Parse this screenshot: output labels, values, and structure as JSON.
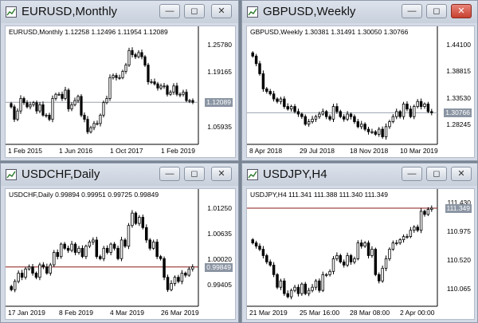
{
  "windows": [
    {
      "id": "eurusd",
      "title": "EURUSD,Monthly",
      "info": "EURUSD,Monthly  1.12258  1.12496  1.11954  1.12089",
      "yticks": [
        {
          "label": "1.25780",
          "value": 1.2578
        },
        {
          "label": "1.19165",
          "value": 1.19165
        },
        {
          "label": "1.05935",
          "value": 1.05935
        }
      ],
      "xticks": [
        "1 Feb 2015",
        "1 Jun 2016",
        "1 Oct 2017",
        "1 Feb 2019"
      ],
      "current_price": "1.12089",
      "current_value": 1.12089,
      "line_color": "#9aa3ad",
      "box_color": "#8b95a3",
      "close_active": false,
      "chart_data": {
        "type": "candlestick",
        "ylim": [
          1.02,
          1.28
        ],
        "closes": [
          1.11,
          1.08,
          1.1,
          1.13,
          1.12,
          1.11,
          1.115,
          1.12,
          1.1,
          1.115,
          1.09,
          1.09,
          1.08,
          1.13,
          1.14,
          1.14,
          1.13,
          1.15,
          1.105,
          1.115,
          1.125,
          1.135,
          1.09,
          1.08,
          1.05,
          1.06,
          1.07,
          1.07,
          1.09,
          1.12,
          1.13,
          1.18,
          1.185,
          1.18,
          1.18,
          1.195,
          1.21,
          1.245,
          1.235,
          1.23,
          1.24,
          1.23,
          1.21,
          1.17,
          1.17,
          1.165,
          1.155,
          1.16,
          1.16,
          1.14,
          1.145,
          1.16,
          1.14,
          1.14,
          1.145,
          1.125,
          1.125,
          1.12089
        ]
      }
    },
    {
      "id": "gbpusd",
      "title": "GBPUSD,Weekly",
      "info": "GBPUSD,Weekly  1.30381  1.31491  1.30050  1.30766",
      "yticks": [
        {
          "label": "1.44100",
          "value": 1.441
        },
        {
          "label": "1.38815",
          "value": 1.38815
        },
        {
          "label": "1.33530",
          "value": 1.3353
        },
        {
          "label": "1.28245",
          "value": 1.28245
        }
      ],
      "xticks": [
        "8 Apr 2018",
        "29 Jul 2018",
        "18 Nov 2018",
        "10 Mar 2019"
      ],
      "current_price": "1.30766",
      "current_value": 1.30766,
      "line_color": "#9aa3ad",
      "box_color": "#8b95a3",
      "close_active": true,
      "chart_data": {
        "type": "candlestick",
        "ylim": [
          1.245,
          1.46
        ],
        "closes": [
          1.42,
          1.405,
          1.385,
          1.355,
          1.35,
          1.345,
          1.335,
          1.33,
          1.335,
          1.32,
          1.315,
          1.32,
          1.31,
          1.305,
          1.3,
          1.285,
          1.29,
          1.295,
          1.3,
          1.305,
          1.31,
          1.3,
          1.295,
          1.32,
          1.31,
          1.3,
          1.295,
          1.305,
          1.3,
          1.29,
          1.28,
          1.285,
          1.275,
          1.27,
          1.27,
          1.265,
          1.275,
          1.26,
          1.28,
          1.29,
          1.3,
          1.31,
          1.3,
          1.325,
          1.315,
          1.3,
          1.32,
          1.33,
          1.32,
          1.325,
          1.31,
          1.30766
        ]
      }
    },
    {
      "id": "usdchf",
      "title": "USDCHF,Daily",
      "info": "USDCHF,Daily  0.99894  0.99951  0.99725  0.99849",
      "yticks": [
        {
          "label": "1.01250",
          "value": 1.0125
        },
        {
          "label": "1.00635",
          "value": 1.00635
        },
        {
          "label": "1.00020",
          "value": 1.0002
        },
        {
          "label": "0.99405",
          "value": 0.99405
        }
      ],
      "xticks": [
        "17 Jan 2019",
        "8 Feb 2019",
        "4 Mar 2019",
        "26 Mar 2019"
      ],
      "current_price": "0.99849",
      "current_value": 0.99849,
      "line_color": "#8b1a1a",
      "box_color": "#8b95a3",
      "close_active": false,
      "chart_data": {
        "type": "candlestick",
        "ylim": [
          0.989,
          1.015
        ],
        "closes": [
          0.993,
          0.995,
          0.997,
          0.996,
          0.998,
          0.9985,
          0.997,
          0.996,
          0.999,
          0.9985,
          0.997,
          0.999,
          1.002,
          1.001,
          1.004,
          1.003,
          1.0025,
          1.004,
          1.002,
          1.003,
          1.001,
          1.0035,
          1.0045,
          1.005,
          1.001,
          1.0005,
          1.003,
          1.002,
          1.004,
          1.003,
          1.0005,
          1.005,
          1.0035,
          1.0085,
          1.0115,
          1.009,
          1.0105,
          1.008,
          1.005,
          1.003,
          1.0045,
          1.001,
          1.0005,
          0.996,
          0.993,
          0.9945,
          0.996,
          0.995,
          0.997,
          0.9965,
          0.998,
          0.99849
        ]
      }
    },
    {
      "id": "usdjpy",
      "title": "USDJPY,H4",
      "info": "USDJPY,H4  111.341  111.388  111.340  111.349",
      "yticks": [
        {
          "label": "111.430",
          "value": 111.43
        },
        {
          "label": "110.975",
          "value": 110.975
        },
        {
          "label": "110.520",
          "value": 110.52
        },
        {
          "label": "110.065",
          "value": 110.065
        }
      ],
      "xticks": [
        "21 Mar 2019",
        "25 Mar 16:00",
        "28 Mar 08:00",
        "2 Apr 00:00"
      ],
      "current_price": "111.349",
      "current_value": 111.349,
      "line_color": "#8b1a1a",
      "box_color": "#8b95a3",
      "close_active": false,
      "chart_data": {
        "type": "candlestick",
        "ylim": [
          109.8,
          111.5
        ],
        "closes": [
          110.8,
          110.75,
          110.7,
          110.6,
          110.5,
          110.45,
          110.3,
          110.1,
          110.2,
          110.0,
          109.95,
          110.05,
          110.1,
          110.0,
          110.15,
          110.0,
          110.05,
          110.1,
          110.2,
          110.05,
          110.3,
          110.3,
          110.35,
          110.55,
          110.6,
          110.5,
          110.45,
          110.6,
          110.5,
          110.55,
          110.8,
          110.75,
          110.8,
          110.6,
          110.7,
          110.3,
          110.2,
          110.4,
          110.55,
          110.7,
          110.8,
          110.8,
          110.85,
          110.9,
          110.9,
          111.0,
          111.05,
          111.0,
          111.3,
          111.25,
          111.33,
          111.349
        ]
      }
    }
  ]
}
